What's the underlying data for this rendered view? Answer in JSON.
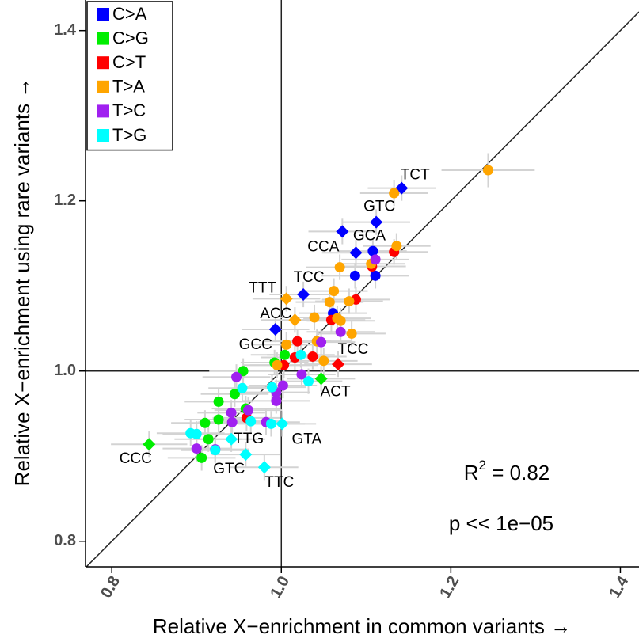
{
  "chart_data": {
    "type": "scatter",
    "x_label": "Relative X−enrichment in common variants →",
    "y_label": "Relative X−enrichment using rare variants →",
    "xlim": [
      0.769,
      1.422
    ],
    "ylim": [
      0.77,
      1.436
    ],
    "xticks": [
      {
        "value": 0.8,
        "label": "0.8"
      },
      {
        "value": 1.0,
        "label": "1.0"
      },
      {
        "value": 1.2,
        "label": "1.2"
      },
      {
        "value": 1.4,
        "label": "1.4"
      }
    ],
    "yticks": [
      {
        "value": 0.8,
        "label": "0.8"
      },
      {
        "value": 1.0,
        "label": "1.0"
      },
      {
        "value": 1.2,
        "label": "1.2"
      },
      {
        "value": 1.4,
        "label": "1.4"
      }
    ],
    "reference_lines": {
      "vline": 1,
      "hline": 1,
      "diagonal": true
    },
    "legend": "top-left",
    "r_squared": {
      "base": "R",
      "sup": "2",
      "rest": " = 0.82"
    },
    "p_value": "p << 1e−05",
    "series": [
      {
        "name": "C>A",
        "color": "#0000ff",
        "x": [
          1.142,
          1.112,
          1.072,
          1.088,
          1.108,
          1.111,
          1.087,
          1.026,
          0.993,
          1.061
        ],
        "y": [
          1.215,
          1.175,
          1.164,
          1.139,
          1.141,
          1.112,
          1.112,
          1.09,
          1.049,
          1.068
        ],
        "xerr": [
          0.04,
          0.04,
          0.04,
          0.04,
          0.04,
          0.04,
          0.04,
          0.04,
          0.04,
          0.04
        ],
        "yerr": [
          0.015,
          0.015,
          0.015,
          0.015,
          0.015,
          0.015,
          0.015,
          0.015,
          0.015,
          0.015
        ],
        "labels": [
          "TCT",
          "GTC",
          "CCA",
          "GCA",
          null,
          null,
          null,
          "TCC",
          "GCC",
          null
        ]
      },
      {
        "name": "C>G",
        "color": "#00ee00",
        "x": [
          0.844,
          1.047,
          0.955,
          0.926,
          0.91,
          0.926,
          0.914,
          0.906,
          0.945,
          0.958,
          1.004,
          0.992
        ],
        "y": [
          0.914,
          0.991,
          1.0,
          0.943,
          0.939,
          0.964,
          0.92,
          0.898,
          0.973,
          0.956,
          1.019,
          1.01
        ],
        "xerr": [
          0.045,
          0.04,
          0.04,
          0.04,
          0.04,
          0.04,
          0.04,
          0.04,
          0.04,
          0.04,
          0.04,
          0.04
        ],
        "yerr": [
          0.015,
          0.015,
          0.015,
          0.015,
          0.015,
          0.015,
          0.015,
          0.015,
          0.015,
          0.015,
          0.015,
          0.015
        ],
        "labels": [
          "CCC",
          "ACT",
          null,
          null,
          null,
          null,
          null,
          null,
          null,
          null,
          null,
          null
        ]
      },
      {
        "name": "C>T",
        "color": "#ff0000",
        "x": [
          1.067,
          1.107,
          1.133,
          1.088,
          1.059,
          1.019,
          1.016,
          1.037,
          1.003,
          0.959
        ],
        "y": [
          1.008,
          1.123,
          1.14,
          1.084,
          1.06,
          1.035,
          1.016,
          1.017,
          1.007,
          0.945
        ],
        "xerr": [
          0.04,
          0.04,
          0.04,
          0.04,
          0.04,
          0.04,
          0.04,
          0.04,
          0.04,
          0.04
        ],
        "yerr": [
          0.015,
          0.015,
          0.015,
          0.015,
          0.015,
          0.015,
          0.015,
          0.015,
          0.015,
          0.015
        ],
        "labels": [
          "TCC",
          null,
          null,
          null,
          null,
          null,
          null,
          null,
          null,
          null
        ]
      },
      {
        "name": "T>A",
        "color": "#ffa500",
        "x": [
          1.006,
          1.016,
          1.244,
          1.133,
          1.136,
          1.106,
          1.069,
          1.062,
          1.057,
          1.08,
          1.066,
          1.039,
          1.083,
          1.07,
          1.006,
          1.042,
          0.995,
          1.05
        ],
        "y": [
          1.085,
          1.06,
          1.236,
          1.209,
          1.147,
          1.126,
          1.122,
          1.094,
          1.081,
          1.082,
          1.062,
          1.063,
          1.044,
          1.059,
          1.031,
          1.035,
          1.007,
          1.012
        ],
        "xerr": [
          0.04,
          0.04,
          0.055,
          0.04,
          0.04,
          0.04,
          0.04,
          0.04,
          0.04,
          0.04,
          0.04,
          0.04,
          0.04,
          0.04,
          0.04,
          0.04,
          0.04,
          0.04
        ],
        "yerr": [
          0.015,
          0.015,
          0.02,
          0.015,
          0.015,
          0.015,
          0.015,
          0.015,
          0.015,
          0.015,
          0.015,
          0.015,
          0.015,
          0.015,
          0.015,
          0.015,
          0.015,
          0.015
        ],
        "labels": [
          "TTT",
          "ACC",
          null,
          null,
          null,
          null,
          null,
          null,
          null,
          null,
          null,
          null,
          null,
          null,
          null,
          null,
          null,
          null
        ]
      },
      {
        "name": "T>C",
        "color": "#a020f0",
        "x": [
          1.111,
          1.047,
          1.024,
          1.002,
          0.994,
          0.961,
          0.941,
          0.942,
          0.982,
          0.9,
          0.922,
          0.947,
          0.994,
          1.07
        ],
        "y": [
          1.131,
          1.034,
          0.996,
          0.983,
          0.965,
          0.954,
          0.951,
          0.94,
          0.94,
          0.909,
          0.908,
          0.993,
          0.975,
          1.046
        ],
        "xerr": [
          0.04,
          0.04,
          0.04,
          0.04,
          0.04,
          0.04,
          0.04,
          0.04,
          0.04,
          0.04,
          0.04,
          0.04,
          0.04,
          0.04
        ],
        "yerr": [
          0.015,
          0.015,
          0.015,
          0.015,
          0.015,
          0.015,
          0.015,
          0.015,
          0.015,
          0.015,
          0.015,
          0.015,
          0.015,
          0.015
        ],
        "labels": [
          null,
          null,
          null,
          null,
          null,
          null,
          null,
          null,
          null,
          null,
          null,
          null,
          null,
          null
        ]
      },
      {
        "name": "T>G",
        "color": "#00ffff",
        "x": [
          0.941,
          1.001,
          0.958,
          0.98,
          0.893,
          0.9,
          0.922,
          0.954,
          0.989,
          1.032,
          1.023,
          0.964,
          0.988
        ],
        "y": [
          0.92,
          0.938,
          0.902,
          0.887,
          0.927,
          0.926,
          0.907,
          0.98,
          0.981,
          0.988,
          1.019,
          0.941,
          0.938
        ],
        "xerr": [
          0.04,
          0.04,
          0.04,
          0.04,
          0.04,
          0.04,
          0.04,
          0.04,
          0.04,
          0.04,
          0.04,
          0.04,
          0.04
        ],
        "yerr": [
          0.015,
          0.015,
          0.015,
          0.015,
          0.015,
          0.015,
          0.015,
          0.015,
          0.015,
          0.015,
          0.015,
          0.015,
          0.015
        ],
        "labels": [
          "TTG",
          "GTA",
          "GTC",
          "TTC",
          null,
          null,
          null,
          null,
          null,
          null,
          null,
          null,
          null
        ]
      }
    ]
  }
}
